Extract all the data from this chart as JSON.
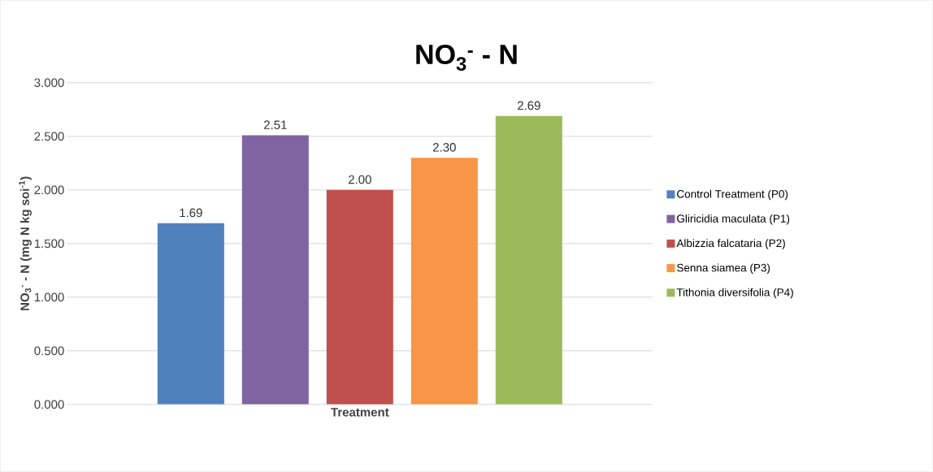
{
  "chart_data": {
    "type": "bar",
    "title": "NO$_{3}$$^{-}$ - N",
    "xlabel": "Treatment",
    "ylabel": "NO$_{3}$$^{-}$ - N (mg N kg soi$^{-1}$)",
    "categories": [
      null
    ],
    "series": [
      {
        "name": "Control Treatment (P0)",
        "color": "#4f81bd",
        "values": [
          1.69
        ],
        "value_labels": [
          "1.69"
        ]
      },
      {
        "name": "Gliricidia maculata (P1)",
        "color": "#8064a2",
        "values": [
          2.51
        ],
        "value_labels": [
          "2.51"
        ]
      },
      {
        "name": "Albizzia falcataria (P2)",
        "color": "#c0504d",
        "values": [
          2.0
        ],
        "value_labels": [
          "2.00"
        ]
      },
      {
        "name": "Senna siamea (P3)",
        "color": "#f79646",
        "values": [
          2.3
        ],
        "value_labels": [
          "2.30"
        ]
      },
      {
        "name": "Tithonia diversifolia (P4)",
        "color": "#9bbb59",
        "values": [
          2.69
        ],
        "value_labels": [
          "2.69"
        ]
      }
    ],
    "ylim": [
      0,
      3
    ],
    "yticks": [
      {
        "value": 0,
        "label": "0.000"
      },
      {
        "value": 0.5,
        "label": "0.500"
      },
      {
        "value": 1,
        "label": "1.000"
      },
      {
        "value": 1.5,
        "label": "1.500"
      },
      {
        "value": 2,
        "label": "2.000"
      },
      {
        "value": 2.5,
        "label": "2.500"
      },
      {
        "value": 3,
        "label": "3.000"
      }
    ],
    "grid": "y",
    "legend": "right"
  }
}
